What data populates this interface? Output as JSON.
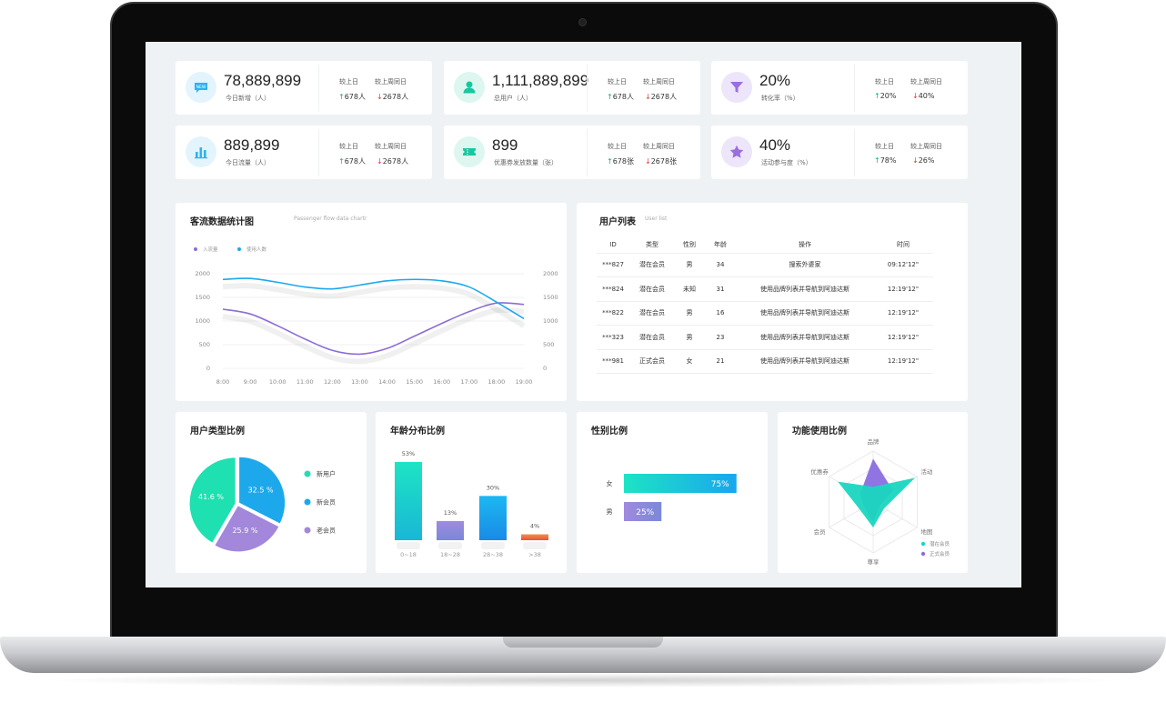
{
  "stats": [
    {
      "icon": "new-badge-icon",
      "color": "#2db3f0",
      "bg": "#e3f4fd",
      "value": "78,889,899",
      "label": "今日新增（人）",
      "day_label": "较上日",
      "week_label": "较上周同日",
      "day_value": "678人",
      "day_dir": "up",
      "week_value": "2678人",
      "week_dir": "down"
    },
    {
      "icon": "user-icon",
      "color": "#18c7a0",
      "bg": "#ddf7f0",
      "value": "1,111,889,899",
      "label": "总用户（人）",
      "day_label": "较上日",
      "week_label": "较上周同日",
      "day_value": "678人",
      "day_dir": "up",
      "week_value": "2678人",
      "week_dir": "down"
    },
    {
      "icon": "funnel-icon",
      "color": "#9b6ee0",
      "bg": "#ede5fa",
      "value": "20%",
      "label": "转化率（%）",
      "day_label": "较上日",
      "week_label": "较上周同日",
      "day_value": "20%",
      "day_dir": "up",
      "week_value": "40%",
      "week_dir": "down"
    },
    {
      "icon": "bar-chart-icon",
      "color": "#2db3f0",
      "bg": "#e3f4fd",
      "value": "889,899",
      "label": "今日流量（人）",
      "day_label": "较上日",
      "week_label": "较上周同日",
      "day_value": "678人",
      "day_dir": "up",
      "week_value": "2678人",
      "week_dir": "down"
    },
    {
      "icon": "ticket-icon",
      "color": "#18c7a0",
      "bg": "#ddf7f0",
      "value": "899",
      "label": "优惠券发放数量（张）",
      "day_label": "较上日",
      "week_label": "较上周同日",
      "day_value": "678张",
      "day_dir": "up",
      "week_value": "2678张",
      "week_dir": "down"
    },
    {
      "icon": "star-icon",
      "color": "#9b6ee0",
      "bg": "#ede5fa",
      "value": "40%",
      "label": "活动参与度（%）",
      "day_label": "较上日",
      "week_label": "较上周同日",
      "day_value": "78%",
      "day_dir": "up",
      "week_value": "26%",
      "week_dir": "down"
    }
  ],
  "flow": {
    "title": "客流数据统计图",
    "subtitle": "Passenger flow data chartr",
    "legend": [
      "入流量",
      "使用人数"
    ],
    "colors": [
      "#8c6cd6",
      "#1da8ec"
    ]
  },
  "users": {
    "title": "用户列表",
    "subtitle": "User list",
    "columns": [
      "ID",
      "类型",
      "性别",
      "年龄",
      "操作",
      "时间"
    ],
    "rows": [
      [
        "***827",
        "潜在会员",
        "男",
        "34",
        "搜索外婆家",
        "09:12'12\""
      ],
      [
        "***824",
        "潜在会员",
        "未知",
        "31",
        "使用品牌列表并导航到阿迪达斯",
        "12:19'12\""
      ],
      [
        "***822",
        "潜在会员",
        "男",
        "16",
        "使用品牌列表并导航到阿迪达斯",
        "12:19'12\""
      ],
      [
        "***323",
        "潜在会员",
        "男",
        "23",
        "使用品牌列表并导航到阿迪达斯",
        "12:19'12\""
      ],
      [
        "***981",
        "正式会员",
        "女",
        "21",
        "使用品牌列表并导航到阿迪达斯",
        "12:19'12\""
      ]
    ]
  },
  "user_type": {
    "title": "用户类型比例",
    "legend": [
      "新用户",
      "新会员",
      "老会员"
    ],
    "colors": [
      "#1ee0b0",
      "#1da8ec",
      "#a287db"
    ],
    "slice_labels": [
      "41.6 %",
      "32.5 %",
      "25.9 %"
    ]
  },
  "age": {
    "title": "年龄分布比例"
  },
  "gender": {
    "title": "性别比例"
  },
  "feature": {
    "title": "功能使用比例",
    "legend": [
      "潜在会员",
      "正式会员"
    ],
    "colors": [
      "#1ad6c0",
      "#8a6ee0"
    ]
  },
  "chart_data": [
    {
      "type": "line",
      "x": [
        "8:00",
        "9:00",
        "10:00",
        "11:00",
        "12:00",
        "13:00",
        "14:00",
        "15:00",
        "16:00",
        "17:00",
        "18:00",
        "19:00"
      ],
      "ylim": [
        0,
        2000
      ],
      "yticks": [
        "2000",
        "1500",
        "1000",
        "500",
        "0"
      ],
      "series": [
        {
          "name": "入流量",
          "values": [
            1250,
            1150,
            900,
            620,
            380,
            300,
            420,
            680,
            950,
            1200,
            1380,
            1350
          ]
        },
        {
          "name": "使用人数",
          "values": [
            1880,
            1900,
            1820,
            1720,
            1680,
            1760,
            1850,
            1880,
            1850,
            1720,
            1400,
            1050
          ]
        }
      ]
    },
    {
      "type": "pie",
      "categories": [
        "新用户",
        "新会员",
        "老会员"
      ],
      "values": [
        41.6,
        32.5,
        25.9
      ]
    },
    {
      "type": "bar",
      "categories": [
        "0~18",
        "18~28",
        "28~38",
        ">38"
      ],
      "values": [
        53,
        13,
        30,
        4
      ],
      "labels": [
        "53%",
        "13%",
        "30%",
        "4%"
      ],
      "colors": [
        [
          "#1de4c4",
          "#19b7d6"
        ],
        [
          "#a08ade",
          "#7a88d8"
        ],
        [
          "#1cb8f2",
          "#1a8ae6"
        ],
        [
          "#f2904a",
          "#e85334"
        ]
      ]
    },
    {
      "type": "bar",
      "orientation": "horizontal",
      "categories": [
        "女",
        "男"
      ],
      "values": [
        75,
        25
      ],
      "labels": [
        "75%",
        "25%"
      ]
    },
    {
      "type": "radar",
      "axes": [
        "品牌",
        "活动",
        "地图",
        "尊享",
        "会员",
        "优惠券"
      ],
      "series": [
        {
          "name": "潜在会员",
          "values": [
            0.3,
            0.95,
            0.25,
            0.5,
            0.3,
            0.8
          ]
        },
        {
          "name": "正式会员",
          "values": [
            0.85,
            0.45,
            0.15,
            0.4,
            0.2,
            0.3
          ]
        }
      ]
    }
  ]
}
